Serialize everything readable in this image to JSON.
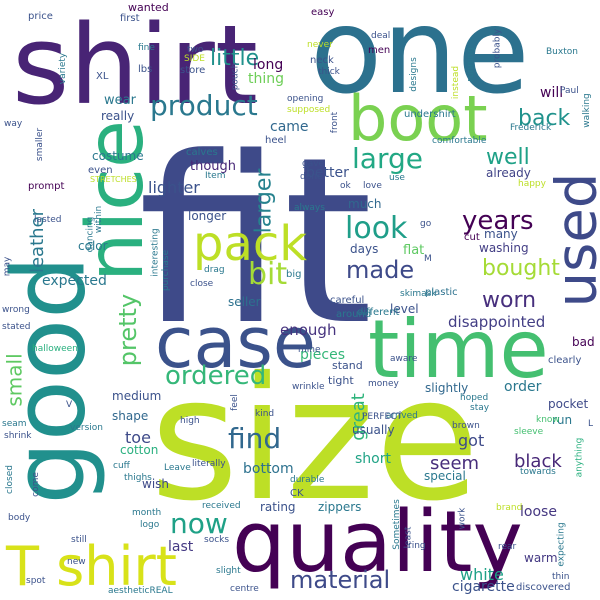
{
  "words": [
    {
      "text": "fit",
      "color": "#3e4a89"
    },
    {
      "text": "size",
      "color": "#bddf26"
    },
    {
      "text": "one",
      "color": "#2c718e"
    },
    {
      "text": "shirt",
      "color": "#482475"
    },
    {
      "text": "good",
      "color": "#21908d"
    },
    {
      "text": "nice",
      "color": "#2ab07f"
    },
    {
      "text": "quality",
      "color": "#440154"
    },
    {
      "text": "time",
      "color": "#44bf70"
    },
    {
      "text": "case",
      "color": "#3b528b"
    },
    {
      "text": "boot",
      "color": "#7ad151"
    },
    {
      "text": "T shirt",
      "color": "#d8e219"
    },
    {
      "text": "pack",
      "color": "#bddf26"
    },
    {
      "text": "used",
      "color": "#3e4a89"
    },
    {
      "text": "product",
      "color": "#2a788e"
    },
    {
      "text": "large",
      "color": "#22a884"
    },
    {
      "text": "material",
      "color": "#3e4a89"
    },
    {
      "text": "now",
      "color": "#1fa187"
    },
    {
      "text": "made",
      "color": "#3e4a89"
    },
    {
      "text": "look",
      "color": "#1f9e89"
    },
    {
      "text": "bit",
      "color": "#a5db36"
    },
    {
      "text": "find",
      "color": "#31688e"
    },
    {
      "text": "ordered",
      "color": "#35b779"
    },
    {
      "text": "years",
      "color": "#440154"
    },
    {
      "text": "bought",
      "color": "#a5db36"
    },
    {
      "text": "worn",
      "color": "#472f7d"
    },
    {
      "text": "well",
      "color": "#1fa187"
    },
    {
      "text": "back",
      "color": "#20928c"
    },
    {
      "text": "little",
      "color": "#21918c"
    },
    {
      "text": "pretty",
      "color": "#54c568"
    },
    {
      "text": "larger",
      "color": "#26828e"
    },
    {
      "text": "leather",
      "color": "#2a788e"
    },
    {
      "text": "small",
      "color": "#5ec962"
    },
    {
      "text": "great",
      "color": "#2fb47c"
    },
    {
      "text": "black",
      "color": "#482878"
    },
    {
      "text": "disappointed",
      "color": "#433e85"
    },
    {
      "text": "enough",
      "color": "#46337e"
    },
    {
      "text": "white",
      "color": "#1fa187"
    },
    {
      "text": "cigarette",
      "color": "#3b528b"
    },
    {
      "text": "seem",
      "color": "#472d7b"
    },
    {
      "text": "got",
      "color": "#3e4a89"
    },
    {
      "text": "lighter",
      "color": "#3b528b"
    },
    {
      "text": "expected",
      "color": "#2a788e"
    },
    {
      "text": "toe",
      "color": "#3e4a89"
    },
    {
      "text": "last",
      "color": "#443983"
    },
    {
      "text": "bottom",
      "color": "#2c718e"
    },
    {
      "text": "short",
      "color": "#20a386"
    },
    {
      "text": "pieces",
      "color": "#35b779"
    },
    {
      "text": "loose",
      "color": "#453781"
    },
    {
      "text": "order",
      "color": "#2a788e"
    },
    {
      "text": "better",
      "color": "#3b528b"
    },
    {
      "text": "long",
      "color": "#440154"
    },
    {
      "text": "thing",
      "color": "#6ece58"
    },
    {
      "text": "came",
      "color": "#31688e"
    },
    {
      "text": "days",
      "color": "#3b528b"
    },
    {
      "text": "color",
      "color": "#2a788e"
    },
    {
      "text": "seller",
      "color": "#2c718e"
    },
    {
      "text": "level",
      "color": "#3b528b"
    },
    {
      "text": "flat",
      "color": "#5ec962"
    },
    {
      "text": "many",
      "color": "#3b528b"
    },
    {
      "text": "washing",
      "color": "#433e85"
    },
    {
      "text": "will",
      "color": "#440154"
    },
    {
      "text": "already",
      "color": "#414487"
    },
    {
      "text": "much",
      "color": "#31688e"
    },
    {
      "text": "though",
      "color": "#482878"
    },
    {
      "text": "longer",
      "color": "#3b528b"
    },
    {
      "text": "really",
      "color": "#3b528b"
    },
    {
      "text": "wear",
      "color": "#2a788e"
    },
    {
      "text": "costume",
      "color": "#2a788e"
    },
    {
      "text": "medium",
      "color": "#3b528b"
    },
    {
      "text": "shape",
      "color": "#31688e"
    },
    {
      "text": "cotton",
      "color": "#2ab07f"
    },
    {
      "text": "wish",
      "color": "#3e4a89"
    },
    {
      "text": "slightly",
      "color": "#31688e"
    },
    {
      "text": "usually",
      "color": "#3b528b"
    },
    {
      "text": "special",
      "color": "#2a788e"
    },
    {
      "text": "pocket",
      "color": "#3e4a89"
    },
    {
      "text": "run",
      "color": "#2a788e"
    },
    {
      "text": "warm",
      "color": "#443983"
    },
    {
      "text": "cut",
      "color": "#440154"
    },
    {
      "text": "plastic",
      "color": "#2c718e"
    },
    {
      "text": "different",
      "color": "#2a788e"
    },
    {
      "text": "careful",
      "color": "#3b528b"
    },
    {
      "text": "around",
      "color": "#2a788e"
    },
    {
      "text": "tight",
      "color": "#3b528b"
    },
    {
      "text": "stand",
      "color": "#3b528b"
    },
    {
      "text": "bad",
      "color": "#440154"
    },
    {
      "text": "wanted",
      "color": "#440154"
    },
    {
      "text": "first",
      "color": "#3b528b"
    },
    {
      "text": "price",
      "color": "#3b528b"
    },
    {
      "text": "easy",
      "color": "#440154"
    },
    {
      "text": "lbs",
      "color": "#3b528b"
    },
    {
      "text": "XL",
      "color": "#3b528b"
    },
    {
      "text": "store",
      "color": "#3b528b"
    },
    {
      "text": "men",
      "color": "#440154"
    },
    {
      "text": "neck",
      "color": "#3b528b"
    },
    {
      "text": "deal",
      "color": "#3b528b"
    },
    {
      "text": "undershirt",
      "color": "#2a788e"
    },
    {
      "text": "heel",
      "color": "#3b528b"
    },
    {
      "text": "calves",
      "color": "#2a788e"
    },
    {
      "text": "even",
      "color": "#3b528b"
    },
    {
      "text": "STRETCHES",
      "color": "#bddf26"
    },
    {
      "text": "Item",
      "color": "#2a788e"
    },
    {
      "text": "gave",
      "color": "#3b528b"
    },
    {
      "text": "done",
      "color": "#3b528b"
    },
    {
      "text": "big",
      "color": "#2a788e"
    },
    {
      "text": "close",
      "color": "#3b528b"
    },
    {
      "text": "drag",
      "color": "#2a788e"
    },
    {
      "text": "purchase",
      "color": "#2a788e"
    },
    {
      "text": "interesting",
      "color": "#2a788e"
    },
    {
      "text": "dancing",
      "color": "#2a788e"
    },
    {
      "text": "within",
      "color": "#2a788e"
    },
    {
      "text": "lasted",
      "color": "#3b528b"
    },
    {
      "text": "prompt",
      "color": "#440154"
    },
    {
      "text": "wrong",
      "color": "#3b528b"
    },
    {
      "text": "may",
      "color": "#3b528b"
    },
    {
      "text": "stated",
      "color": "#3b528b"
    },
    {
      "text": "halloween",
      "color": "#2ab07f"
    },
    {
      "text": "V",
      "color": "#3b528b"
    },
    {
      "text": "seam",
      "color": "#2a788e"
    },
    {
      "text": "shrink",
      "color": "#3b528b"
    },
    {
      "text": "closed",
      "color": "#2a788e"
    },
    {
      "text": "body",
      "color": "#3b528b"
    },
    {
      "text": "still",
      "color": "#3b528b"
    },
    {
      "text": "spot",
      "color": "#3b528b"
    },
    {
      "text": "new",
      "color": "#3b528b"
    },
    {
      "text": "aestheticREAL",
      "color": "#2a788e"
    },
    {
      "text": "slight",
      "color": "#2a788e"
    },
    {
      "text": "centre",
      "color": "#3b528b"
    },
    {
      "text": "socks",
      "color": "#3b528b"
    },
    {
      "text": "month",
      "color": "#2a788e"
    },
    {
      "text": "logo",
      "color": "#2a788e"
    },
    {
      "text": "received",
      "color": "#2a788e"
    },
    {
      "text": "rating",
      "color": "#3b528b"
    },
    {
      "text": "zippers",
      "color": "#2a788e"
    },
    {
      "text": "CK",
      "color": "#3b528b"
    },
    {
      "text": "Sometimes",
      "color": "#2a788e"
    },
    {
      "text": "least",
      "color": "#3b528b"
    },
    {
      "text": "ring",
      "color": "#3b528b"
    },
    {
      "text": "work",
      "color": "#3b528b"
    },
    {
      "text": "rear",
      "color": "#3b528b"
    },
    {
      "text": "brand",
      "color": "#bddf26"
    },
    {
      "text": "thin",
      "color": "#3b528b"
    },
    {
      "text": "discovered",
      "color": "#3b528b"
    },
    {
      "text": "expecting",
      "color": "#2a788e"
    },
    {
      "text": "anything",
      "color": "#2ab07f"
    },
    {
      "text": "towards",
      "color": "#2a788e"
    },
    {
      "text": "sleeve",
      "color": "#44bf70"
    },
    {
      "text": "know",
      "color": "#44bf70"
    },
    {
      "text": "L",
      "color": "#3b528b"
    },
    {
      "text": "stay",
      "color": "#2a788e"
    },
    {
      "text": "hoped",
      "color": "#2a788e"
    },
    {
      "text": "clearly",
      "color": "#3b528b"
    },
    {
      "text": "brown",
      "color": "#3b528b"
    },
    {
      "text": "arrived",
      "color": "#2a788e"
    },
    {
      "text": "literally",
      "color": "#3b528b"
    },
    {
      "text": "durable",
      "color": "#2a788e"
    },
    {
      "text": "PERFECT",
      "color": "#3b528b"
    },
    {
      "text": "money",
      "color": "#3b528b"
    },
    {
      "text": "wrinkle",
      "color": "#3b528b"
    },
    {
      "text": "mine",
      "color": "#3b528b"
    },
    {
      "text": "aware",
      "color": "#3b528b"
    },
    {
      "text": "thighs",
      "color": "#2a788e"
    },
    {
      "text": "cuff",
      "color": "#2a788e"
    },
    {
      "text": "Leave",
      "color": "#2a788e"
    },
    {
      "text": "high",
      "color": "#3b528b"
    },
    {
      "text": "kind",
      "color": "#3b528b"
    },
    {
      "text": "feel",
      "color": "#3b528b"
    },
    {
      "text": "version",
      "color": "#2a788e"
    },
    {
      "text": "come",
      "color": "#3b528b"
    },
    {
      "text": "smaller",
      "color": "#3b528b"
    },
    {
      "text": "way",
      "color": "#3b528b"
    },
    {
      "text": "variety",
      "color": "#2a788e"
    },
    {
      "text": "fine",
      "color": "#2a788e"
    },
    {
      "text": "two",
      "color": "#3b528b"
    },
    {
      "text": "SIDE",
      "color": "#bddf26"
    },
    {
      "text": "pouch",
      "color": "#3b528b"
    },
    {
      "text": "never",
      "color": "#bddf26"
    },
    {
      "text": "thick",
      "color": "#3b528b"
    },
    {
      "text": "designs",
      "color": "#2a788e"
    },
    {
      "text": "instead",
      "color": "#bddf26"
    },
    {
      "text": "running",
      "color": "#2a788e"
    },
    {
      "text": "probably",
      "color": "#3b528b"
    },
    {
      "text": "Buxton",
      "color": "#2a788e"
    },
    {
      "text": "Paul",
      "color": "#3b528b"
    },
    {
      "text": "Frederick",
      "color": "#2a788e"
    },
    {
      "text": "walking",
      "color": "#2a788e"
    },
    {
      "text": "comfortable",
      "color": "#2a788e"
    },
    {
      "text": "happy",
      "color": "#bddf26"
    },
    {
      "text": "opening",
      "color": "#3b528b"
    },
    {
      "text": "supposed",
      "color": "#bddf26"
    },
    {
      "text": "front",
      "color": "#3b528b"
    },
    {
      "text": "ok",
      "color": "#3b528b"
    },
    {
      "text": "love",
      "color": "#3b528b"
    },
    {
      "text": "use",
      "color": "#2a788e"
    },
    {
      "text": "always",
      "color": "#2a788e"
    },
    {
      "text": "go",
      "color": "#3b528b"
    },
    {
      "text": "M",
      "color": "#3b528b"
    },
    {
      "text": "skimask",
      "color": "#2a788e"
    }
  ]
}
